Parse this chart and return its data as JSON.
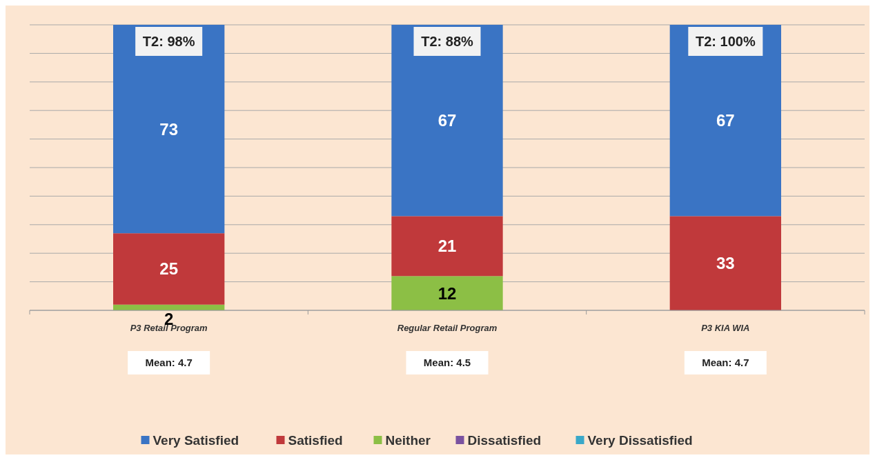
{
  "chart_data": {
    "type": "bar",
    "stacked": true,
    "categories": [
      "P3 Retail Program",
      "Regular Retail Program",
      "P3 KIA WIA"
    ],
    "series": [
      {
        "name": "Very Dissatisfied",
        "color": "#3aa8c8",
        "values": [
          0,
          0,
          0
        ],
        "value_labels": [
          null,
          null,
          null
        ]
      },
      {
        "name": "Dissatisfied",
        "color": "#7a52a0",
        "values": [
          0,
          0,
          0
        ],
        "value_labels": [
          null,
          null,
          null
        ]
      },
      {
        "name": "Neither",
        "color": "#8cbf45",
        "values": [
          2,
          12,
          0
        ],
        "value_labels": [
          "2",
          "12",
          null
        ]
      },
      {
        "name": "Satisfied",
        "color": "#c0393b",
        "values": [
          25,
          21,
          33
        ],
        "value_labels": [
          "25",
          "21",
          "33"
        ]
      },
      {
        "name": "Very Satisfied",
        "color": "#3a74c4",
        "values": [
          73,
          67,
          67
        ],
        "value_labels": [
          "73",
          "67",
          "67"
        ]
      }
    ],
    "ylim": [
      0,
      100
    ],
    "yticks": [
      {
        "value": 0,
        "label": null
      },
      {
        "value": 10,
        "label": null
      },
      {
        "value": 20,
        "label": null
      },
      {
        "value": 30,
        "label": null
      },
      {
        "value": 40,
        "label": null
      },
      {
        "value": 50,
        "label": null
      },
      {
        "value": 60,
        "label": null
      },
      {
        "value": 70,
        "label": null
      },
      {
        "value": 80,
        "label": null
      },
      {
        "value": 90,
        "label": null
      },
      {
        "value": 100,
        "label": null
      }
    ],
    "grid": "y",
    "legend": "bottom",
    "tick_labels": "x",
    "annotations": [
      {
        "text": "T2: 98%",
        "x": "P3 Retail Program",
        "y": 100
      },
      {
        "text": "T2: 88%",
        "x": "Regular Retail Program",
        "y": 100
      },
      {
        "text": "T2: 100%",
        "x": "P3 KIA WIA",
        "y": 100
      },
      "Mean: 4.7",
      "Mean: 4.5",
      "Mean: 4.7"
    ]
  }
}
